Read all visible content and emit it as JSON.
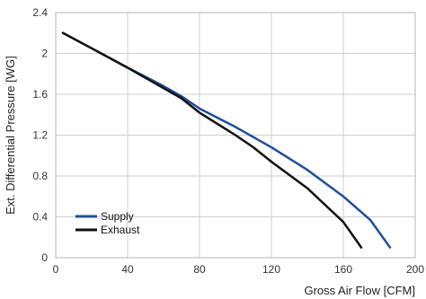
{
  "chart_data": {
    "type": "line",
    "title": "",
    "xlabel": "Gross Air Flow [CFM]",
    "ylabel": "Ext. Differential Pressure [WG]",
    "xlim": [
      0,
      200
    ],
    "ylim": [
      0,
      2.4
    ],
    "x_ticks": [
      0,
      40,
      80,
      120,
      160,
      200
    ],
    "y_ticks": [
      0,
      0.4,
      0.8,
      1.2,
      1.6,
      2,
      2.4
    ],
    "x_tick_labels": [
      "0",
      "40",
      "80",
      "120",
      "160",
      "200"
    ],
    "y_tick_labels": [
      "0",
      "0.4",
      "0.8",
      "1.2",
      "1.6",
      "2",
      "2.4"
    ],
    "grid": true,
    "legend_position": "bottom-left",
    "series": [
      {
        "name": "Supply",
        "color": "#1f4e9c",
        "points": [
          [
            4,
            2.2
          ],
          [
            20,
            2.05
          ],
          [
            40,
            1.86
          ],
          [
            60,
            1.68
          ],
          [
            70,
            1.58
          ],
          [
            80,
            1.46
          ],
          [
            100,
            1.28
          ],
          [
            120,
            1.08
          ],
          [
            140,
            0.86
          ],
          [
            160,
            0.6
          ],
          [
            175,
            0.37
          ],
          [
            186,
            0.1
          ]
        ]
      },
      {
        "name": "Exhaust",
        "color": "#111111",
        "points": [
          [
            4,
            2.2
          ],
          [
            20,
            2.05
          ],
          [
            40,
            1.86
          ],
          [
            60,
            1.66
          ],
          [
            70,
            1.56
          ],
          [
            80,
            1.42
          ],
          [
            100,
            1.2
          ],
          [
            110,
            1.08
          ],
          [
            120,
            0.94
          ],
          [
            140,
            0.68
          ],
          [
            160,
            0.35
          ],
          [
            170,
            0.1
          ]
        ]
      }
    ]
  }
}
